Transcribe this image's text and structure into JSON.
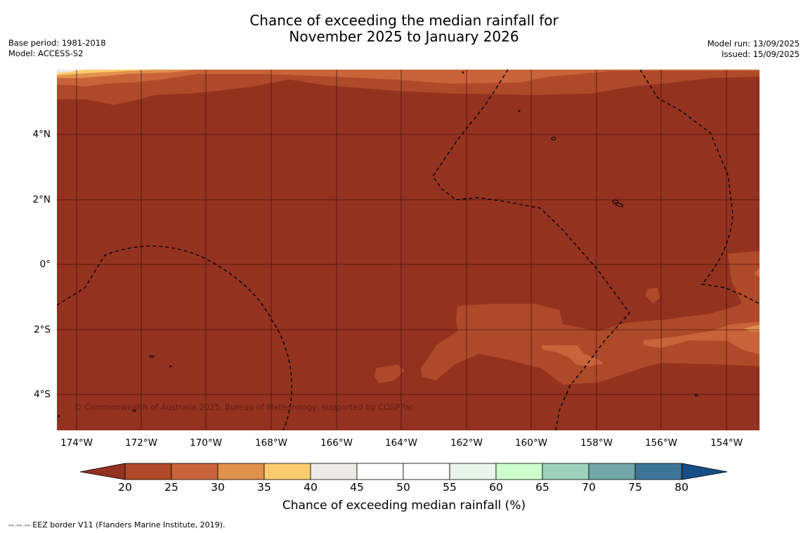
{
  "title": {
    "line1": "Chance of exceeding the median rainfall for",
    "line2": "November 2025 to January 2026"
  },
  "meta": {
    "base_period": "Base period: 1981-2018",
    "model": "Model: ACCESS-S2",
    "model_run": "Model run: 13/09/2025",
    "issued": "Issued: 15/09/2025"
  },
  "map": {
    "lat_labels": [
      "4°N",
      "2°N",
      "0°",
      "2°S",
      "4°S"
    ],
    "lon_labels": [
      "174°W",
      "172°W",
      "170°W",
      "168°W",
      "166°W",
      "164°W",
      "162°W",
      "160°W",
      "158°W",
      "156°W",
      "154°W"
    ],
    "copyright": "© Commonwealth of Australia 2025, Bureau of Meteorology, supported by COSPPac",
    "colors": {
      "lt20": "#943220",
      "c20_25": "#ae4a2a",
      "c25_30": "#c9643a",
      "c30_35": "#e0914c",
      "c35_40": "#fccb6e",
      "grid": "#3a0e06",
      "eez": "#000000"
    }
  },
  "colorbar": {
    "ticks": [
      "20",
      "25",
      "30",
      "35",
      "40",
      "45",
      "50",
      "55",
      "60",
      "65",
      "70",
      "75",
      "80"
    ],
    "colors": [
      "#ae4a2a",
      "#c9643a",
      "#e0914c",
      "#fccb6e",
      "#ecebe8",
      "#ffffff",
      "#ffffff",
      "#e8f5e8",
      "#ccffcc",
      "#9fd0bc",
      "#73a7a7",
      "#3e7596"
    ],
    "under_color": "#943220",
    "over_color": "#174e86",
    "label": "Chance of exceeding median rainfall (%)"
  },
  "footnote": "--  --  -- EEZ border V11 (Flanders Marine Institute, 2019)."
}
